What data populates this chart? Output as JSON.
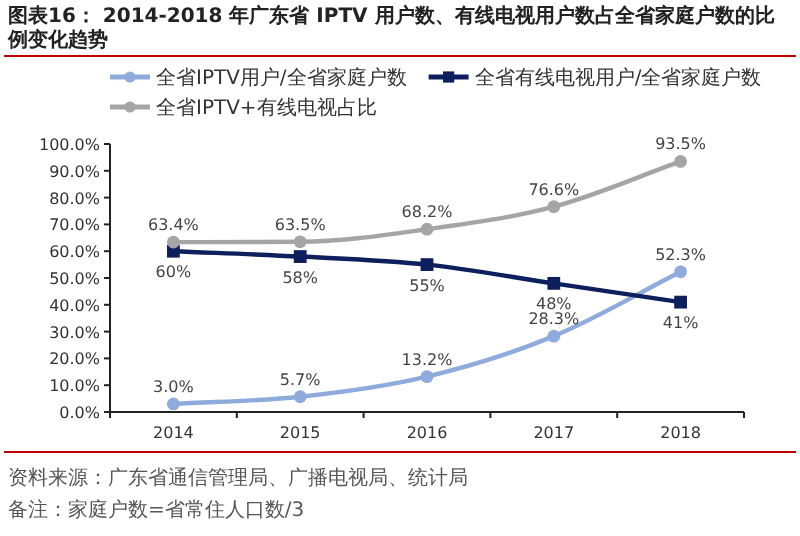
{
  "chart_data": {
    "type": "line",
    "title": "图表16： 2014-2018 年广东省 IPTV 用户数、有线电视用户数占全省家庭户数的比例变化趋势",
    "categories": [
      "2014",
      "2015",
      "2016",
      "2017",
      "2018"
    ],
    "series": [
      {
        "name": "全省IPTV用户/全省家庭户数",
        "color": "#8faadc",
        "marker": "circle",
        "values": [
          3.0,
          5.7,
          13.2,
          28.3,
          52.3
        ],
        "value_labels": [
          "3.0%",
          "5.7%",
          "13.2%",
          "28.3%",
          "52.3%"
        ]
      },
      {
        "name": "全省有线电视用户/全省家庭户数",
        "color": "#0d1f5c",
        "marker": "square",
        "values": [
          60,
          58,
          55,
          48,
          41
        ],
        "value_labels": [
          "60%",
          "58%",
          "55%",
          "48%",
          "41%"
        ]
      },
      {
        "name": "全省IPTV+有线电视占比",
        "color": "#a5a5a5",
        "marker": "circle",
        "values": [
          63.4,
          63.5,
          68.2,
          76.6,
          93.5
        ],
        "value_labels": [
          "63.4%",
          "63.5%",
          "68.2%",
          "76.6%",
          "93.5%"
        ]
      }
    ],
    "ylim": [
      0,
      100
    ],
    "yticks": [
      {
        "value": 0,
        "label": "0.0%"
      },
      {
        "value": 10,
        "label": "10.0%"
      },
      {
        "value": 20,
        "label": "20.0%"
      },
      {
        "value": 30,
        "label": "30.0%"
      },
      {
        "value": 40,
        "label": "40.0%"
      },
      {
        "value": 50,
        "label": "50.0%"
      },
      {
        "value": 60,
        "label": "60.0%"
      },
      {
        "value": 70,
        "label": "70.0%"
      },
      {
        "value": 80,
        "label": "80.0%"
      },
      {
        "value": 90,
        "label": "90.0%"
      },
      {
        "value": 100,
        "label": "100.0%"
      }
    ],
    "legend": "top",
    "annotations": [
      "资料来源：广东省通信管理局、广播电视局、统计局",
      "备注：家庭户数=省常住人口数/3"
    ]
  }
}
